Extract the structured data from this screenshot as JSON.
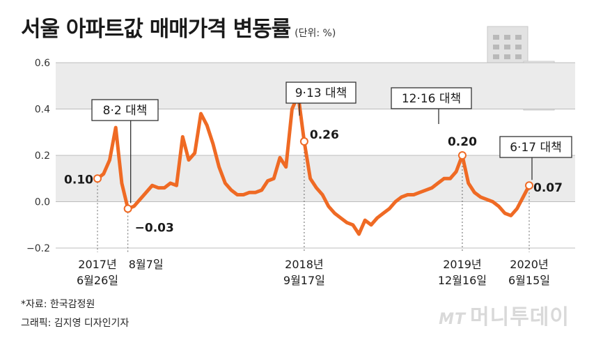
{
  "header": {
    "title": "서울 아파트값 매매가격 변동률",
    "unit": "(단위: %)"
  },
  "footer": {
    "source": "*자료: 한국감정원",
    "credit": "그래픽: 김지영 디자인기자"
  },
  "watermark": {
    "mt": "MT",
    "name": "머니투데이"
  },
  "colors": {
    "line": "#ef6a24",
    "band": "#ebebeb",
    "grid": "#bcbcbc"
  },
  "chart_data": {
    "type": "line",
    "title": "서울 아파트값 매매가격 변동률",
    "ylim": [
      -0.2,
      0.6
    ],
    "y_ticks": [
      "0.6",
      "0.4",
      "0.2",
      "0.0",
      "−0.2"
    ],
    "grid": true,
    "series": [
      {
        "values": [
          0.1,
          0.12,
          0.18,
          0.32,
          0.08,
          -0.03,
          -0.02,
          0.01,
          0.04,
          0.07,
          0.06,
          0.06,
          0.08,
          0.07,
          0.28,
          0.18,
          0.21,
          0.38,
          0.33,
          0.25,
          0.15,
          0.08,
          0.05,
          0.03,
          0.03,
          0.04,
          0.04,
          0.05,
          0.09,
          0.1,
          0.19,
          0.15,
          0.4,
          0.46,
          0.26,
          0.1,
          0.06,
          0.03,
          -0.02,
          -0.05,
          -0.07,
          -0.09,
          -0.1,
          -0.14,
          -0.08,
          -0.1,
          -0.07,
          -0.05,
          -0.03,
          0.0,
          0.02,
          0.03,
          0.03,
          0.04,
          0.05,
          0.06,
          0.08,
          0.1,
          0.1,
          0.13,
          0.2,
          0.08,
          0.04,
          0.02,
          0.01,
          0.0,
          -0.02,
          -0.05,
          -0.06,
          -0.03,
          0.02,
          0.07
        ]
      }
    ],
    "callouts": [
      {
        "label": "8·2 대책",
        "value": "−0.03"
      },
      {
        "label": "9·13 대책",
        "value": "0.26"
      },
      {
        "label": "12·16 대책",
        "value": "0.20"
      },
      {
        "label": "6·17 대책",
        "value": "0.07"
      }
    ],
    "start_value_label": "0.10",
    "x_labels": [
      {
        "year": "2017년",
        "day": "6월26일"
      },
      {
        "year": "",
        "day": "8월7일"
      },
      {
        "year": "2018년",
        "day": "9월17일"
      },
      {
        "year": "2019년",
        "day": "12월16일"
      },
      {
        "year": "2020년",
        "day": "6월15일"
      }
    ]
  }
}
